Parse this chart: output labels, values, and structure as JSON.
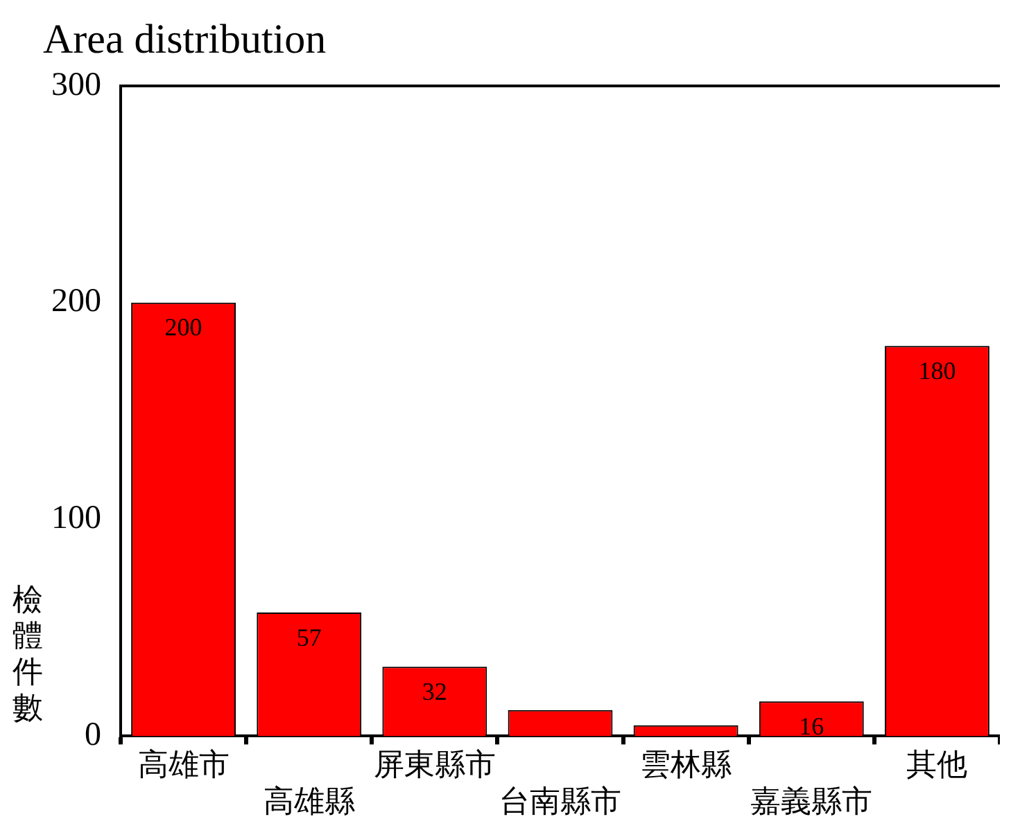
{
  "chart_data": {
    "type": "bar",
    "title": "Area distribution",
    "ylabel": "檢體件數",
    "categories": [
      "高雄市",
      "高雄縣",
      "屏東縣市",
      "台南縣市",
      "雲林縣",
      "嘉義縣市",
      "其他"
    ],
    "values": [
      200,
      57,
      32,
      12,
      5,
      16,
      180
    ],
    "value_labels": [
      "200",
      "57",
      "32",
      null,
      null,
      "16",
      "180"
    ],
    "color": "#ff0000",
    "ylim": [
      0,
      300
    ],
    "yticks": [
      0,
      100,
      200,
      300
    ],
    "grid": false,
    "legend": false
  }
}
